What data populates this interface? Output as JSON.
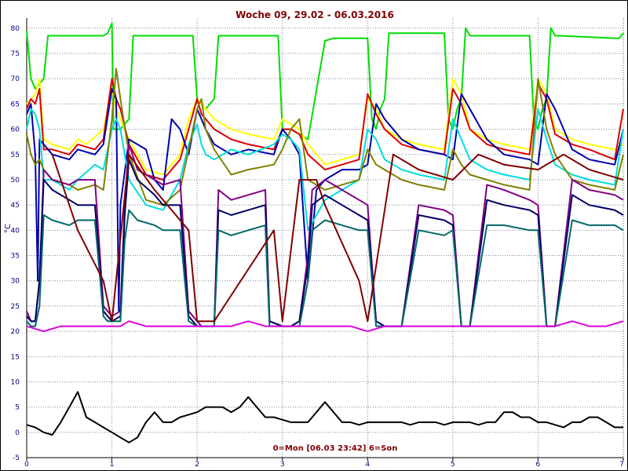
{
  "chart_data": {
    "type": "line",
    "title": "Woche 09, 29.02 - 06.03.2016",
    "ylabel": "°C",
    "xlabel": "0=Mon [06.03 23:42] 6=Son",
    "xlim": [
      0,
      7
    ],
    "ylim": [
      -5,
      82
    ],
    "xticks": [
      "0",
      "1",
      "2",
      "3",
      "4",
      "5",
      "6",
      "7"
    ],
    "yticks": [
      "-5",
      "0",
      "5",
      "10",
      "15",
      "20",
      "25",
      "30",
      "35",
      "40",
      "45",
      "50",
      "55",
      "60",
      "65",
      "70",
      "75",
      "80"
    ],
    "grid": true,
    "series": [
      {
        "color": "#00dd00",
        "x": [
          0,
          0.05,
          0.1,
          0.2,
          0.25,
          0.9,
          0.95,
          1.0,
          1.02,
          1.1,
          1.2,
          1.25,
          1.95,
          2.0,
          2.1,
          2.2,
          2.25,
          2.95,
          3.0,
          3.1,
          3.2,
          3.3,
          3.5,
          3.6,
          3.65,
          4.0,
          4.05,
          4.1,
          4.15,
          4.2,
          4.25,
          4.9,
          4.95,
          5.0,
          5.05,
          5.1,
          5.15,
          5.2,
          5.25,
          5.9,
          5.95,
          6.0,
          6.05,
          6.1,
          6.15,
          6.2,
          6.25,
          6.9,
          6.95,
          7.0
        ],
        "y": [
          79.5,
          70,
          68,
          70,
          78.5,
          78.5,
          79,
          81,
          60,
          60,
          62,
          78.5,
          78.5,
          66,
          64,
          66,
          78.5,
          78.5,
          60,
          60,
          59,
          58,
          77.5,
          78,
          78,
          78,
          62,
          60,
          64,
          66,
          79,
          79,
          62,
          60,
          64,
          66,
          80,
          78.5,
          78.5,
          78.5,
          62,
          60,
          64,
          66,
          80,
          78.5,
          78.5,
          78,
          78,
          79
        ]
      },
      {
        "color": "#ffff00",
        "x": [
          0,
          0.05,
          0.1,
          0.15,
          0.2,
          0.3,
          0.5,
          0.6,
          0.7,
          0.9,
          1.0,
          1.05,
          1.1,
          1.2,
          1.4,
          1.6,
          1.8,
          1.9,
          2.0,
          2.1,
          2.2,
          2.4,
          2.6,
          2.9,
          3.0,
          3.1,
          3.2,
          3.3,
          3.5,
          3.7,
          3.9,
          4.0,
          4.1,
          4.2,
          4.4,
          4.6,
          4.9,
          5.0,
          5.1,
          5.2,
          5.4,
          5.6,
          5.9,
          6.0,
          6.1,
          6.2,
          6.4,
          6.6,
          6.9,
          7.0
        ],
        "y": [
          65,
          66,
          67,
          70,
          58,
          57,
          56,
          58,
          57,
          60,
          68,
          64,
          62,
          58,
          52,
          51,
          55,
          62,
          66,
          64,
          62,
          60,
          59,
          58,
          62,
          61,
          60,
          57,
          53,
          54,
          55,
          66,
          64,
          60,
          58,
          57,
          56,
          70,
          67,
          60,
          58,
          57,
          56,
          70,
          67,
          60,
          58,
          57,
          56,
          57
        ]
      },
      {
        "color": "#dd0000",
        "x": [
          0,
          0.05,
          0.1,
          0.15,
          0.2,
          0.3,
          0.5,
          0.6,
          0.8,
          0.9,
          1.0,
          1.05,
          1.1,
          1.2,
          1.4,
          1.6,
          1.8,
          1.9,
          2.0,
          2.05,
          2.1,
          2.2,
          2.4,
          2.6,
          2.9,
          3.0,
          3.1,
          3.2,
          3.3,
          3.5,
          3.7,
          3.9,
          4.0,
          4.1,
          4.2,
          4.4,
          4.6,
          4.9,
          5.0,
          5.1,
          5.2,
          5.4,
          5.6,
          5.9,
          6.0,
          6.1,
          6.2,
          6.4,
          6.6,
          6.9,
          7.0
        ],
        "y": [
          64,
          66,
          65,
          68,
          56,
          56,
          55,
          57,
          56,
          58,
          70,
          66,
          64,
          57,
          51,
          50,
          54,
          60,
          66,
          63,
          62,
          60,
          58,
          57,
          56,
          60,
          60,
          59,
          55,
          52,
          53,
          54,
          67,
          63,
          60,
          57,
          56,
          55,
          68,
          65,
          60,
          57,
          56,
          55,
          69,
          66,
          59,
          57,
          56,
          54,
          64
        ]
      },
      {
        "color": "#0000aa",
        "x": [
          0,
          0.05,
          0.1,
          0.13,
          0.15,
          0.2,
          0.3,
          0.5,
          0.6,
          0.8,
          0.9,
          1.0,
          1.05,
          1.08,
          1.1,
          1.2,
          1.4,
          1.5,
          1.6,
          1.7,
          1.8,
          1.9,
          2.0,
          2.05,
          2.1,
          2.2,
          2.4,
          2.6,
          2.9,
          3.0,
          3.1,
          3.2,
          3.3,
          3.4,
          3.5,
          3.7,
          3.9,
          4.0,
          4.1,
          4.2,
          4.4,
          4.6,
          4.9,
          5.0,
          5.1,
          5.2,
          5.4,
          5.6,
          5.9,
          6.0,
          6.1,
          6.2,
          6.4,
          6.6,
          6.9,
          7.0
        ],
        "y": [
          63,
          65,
          55,
          30,
          58,
          57,
          55,
          54,
          56,
          55,
          57,
          68,
          66,
          24,
          45,
          58,
          56,
          50,
          48,
          62,
          60,
          55,
          64,
          62,
          60,
          57,
          55,
          56,
          55,
          60,
          58,
          55,
          30,
          48,
          50,
          52,
          52,
          53,
          65,
          62,
          58,
          56,
          55,
          54,
          67,
          64,
          58,
          55,
          54,
          53,
          67,
          64,
          56,
          54,
          53,
          60
        ]
      },
      {
        "color": "#00dddd",
        "x": [
          0,
          0.05,
          0.1,
          0.15,
          0.2,
          0.3,
          0.5,
          0.6,
          0.8,
          0.9,
          1.0,
          1.05,
          1.1,
          1.2,
          1.4,
          1.6,
          1.8,
          1.9,
          2.0,
          2.05,
          2.1,
          2.2,
          2.4,
          2.6,
          2.9,
          3.0,
          3.1,
          3.2,
          3.3,
          3.5,
          3.7,
          3.9,
          4.0,
          4.1,
          4.2,
          4.4,
          4.6,
          4.9,
          5.0,
          5.1,
          5.2,
          5.4,
          5.6,
          5.9,
          6.0,
          6.1,
          6.2,
          6.4,
          6.6,
          6.9,
          7.0
        ],
        "y": [
          60,
          64,
          63,
          60,
          50,
          50,
          48,
          50,
          53,
          52,
          60,
          62,
          60,
          50,
          45,
          44,
          50,
          57,
          61,
          57,
          55,
          54,
          56,
          55,
          57,
          59,
          58,
          56,
          40,
          46,
          48,
          50,
          60,
          58,
          54,
          52,
          51,
          50,
          62,
          58,
          54,
          52,
          51,
          50,
          64,
          58,
          53,
          51,
          50,
          49,
          60
        ]
      },
      {
        "color": "#808000",
        "x": [
          0,
          0.05,
          0.1,
          0.15,
          0.2,
          0.3,
          0.5,
          0.6,
          0.8,
          0.9,
          1.0,
          1.05,
          1.1,
          1.2,
          1.4,
          1.6,
          1.8,
          1.9,
          2.0,
          2.05,
          2.1,
          2.2,
          2.4,
          2.6,
          2.9,
          3.0,
          3.1,
          3.2,
          3.3,
          3.5,
          3.7,
          3.9,
          4.0,
          4.1,
          4.2,
          4.4,
          4.6,
          4.9,
          5.0,
          5.1,
          5.2,
          5.4,
          5.6,
          5.9,
          6.0,
          6.1,
          6.2,
          6.4,
          6.6,
          6.9,
          7.0
        ],
        "y": [
          59,
          55,
          53,
          54,
          52,
          50,
          49,
          48,
          49,
          48,
          62,
          72,
          66,
          55,
          46,
          45,
          48,
          56,
          64,
          66,
          60,
          56,
          51,
          52,
          53,
          56,
          60,
          62,
          50,
          48,
          49,
          50,
          56,
          53,
          52,
          50,
          49,
          48,
          56,
          53,
          51,
          50,
          49,
          48,
          70,
          60,
          55,
          50,
          49,
          48,
          55
        ]
      },
      {
        "color": "#800080",
        "x": [
          0,
          0.05,
          0.1,
          0.15,
          0.2,
          0.3,
          0.5,
          0.6,
          0.8,
          0.9,
          0.95,
          1.0,
          1.1,
          1.15,
          1.2,
          1.3,
          1.5,
          1.6,
          1.8,
          1.9,
          2.0,
          2.05,
          2.2,
          2.25,
          2.4,
          2.6,
          2.8,
          2.85,
          3.0,
          3.1,
          3.2,
          3.3,
          3.35,
          3.5,
          3.7,
          3.9,
          4.0,
          4.1,
          4.2,
          4.4,
          4.6,
          4.9,
          5.0,
          5.1,
          5.2,
          5.4,
          5.6,
          5.9,
          6.0,
          6.1,
          6.2,
          6.4,
          6.6,
          6.9,
          7.0
        ],
        "y": [
          24,
          22,
          22,
          30,
          52,
          50,
          49,
          50,
          50,
          25,
          24,
          23,
          24,
          45,
          57,
          52,
          50,
          49,
          50,
          24,
          22,
          21,
          21,
          48,
          46,
          47,
          48,
          22,
          21,
          21,
          22,
          35,
          48,
          50,
          48,
          46,
          45,
          22,
          21,
          21,
          45,
          44,
          43,
          21,
          21,
          49,
          48,
          46,
          45,
          21,
          21,
          50,
          48,
          47,
          46
        ]
      },
      {
        "color": "#000066",
        "x": [
          0,
          0.05,
          0.1,
          0.15,
          0.2,
          0.3,
          0.5,
          0.6,
          0.8,
          0.9,
          0.95,
          1.0,
          1.1,
          1.15,
          1.2,
          1.3,
          1.5,
          1.6,
          1.8,
          1.9,
          2.0,
          2.05,
          2.2,
          2.25,
          2.4,
          2.6,
          2.8,
          2.85,
          3.0,
          3.1,
          3.2,
          3.3,
          3.35,
          3.5,
          3.7,
          3.9,
          4.0,
          4.1,
          4.2,
          4.4,
          4.6,
          4.9,
          5.0,
          5.1,
          5.2,
          5.4,
          5.6,
          5.9,
          6.0,
          6.1,
          6.2,
          6.4,
          6.6,
          6.9,
          7.0
        ],
        "y": [
          23,
          22,
          22,
          30,
          50,
          48,
          46,
          45,
          45,
          24,
          23,
          22,
          23,
          43,
          54,
          50,
          47,
          45,
          45,
          23,
          21,
          21,
          21,
          44,
          43,
          44,
          45,
          22,
          21,
          21,
          22,
          33,
          45,
          47,
          45,
          43,
          42,
          22,
          21,
          21,
          43,
          42,
          41,
          21,
          21,
          46,
          45,
          44,
          43,
          21,
          21,
          47,
          45,
          44,
          43
        ]
      },
      {
        "color": "#006666",
        "x": [
          0,
          0.05,
          0.1,
          0.15,
          0.2,
          0.3,
          0.5,
          0.6,
          0.8,
          0.9,
          0.95,
          1.0,
          1.1,
          1.15,
          1.2,
          1.3,
          1.5,
          1.6,
          1.8,
          1.9,
          2.0,
          2.05,
          2.2,
          2.25,
          2.4,
          2.6,
          2.8,
          2.85,
          3.0,
          3.1,
          3.2,
          3.3,
          3.35,
          3.5,
          3.7,
          3.9,
          4.0,
          4.1,
          4.2,
          4.4,
          4.6,
          4.9,
          5.0,
          5.1,
          5.2,
          5.4,
          5.6,
          5.9,
          6.0,
          6.1,
          6.2,
          6.4,
          6.6,
          6.9,
          7.0
        ],
        "y": [
          22,
          21,
          21,
          25,
          43,
          42,
          41,
          42,
          42,
          23,
          22,
          22,
          22,
          38,
          44,
          42,
          41,
          40,
          40,
          22,
          21,
          21,
          21,
          40,
          39,
          40,
          41,
          21,
          21,
          21,
          21,
          30,
          40,
          42,
          41,
          40,
          40,
          21,
          21,
          21,
          40,
          39,
          40,
          21,
          21,
          41,
          41,
          40,
          40,
          21,
          21,
          42,
          41,
          41,
          40
        ]
      },
      {
        "color": "#800000",
        "x": [
          0.3,
          0.6,
          0.9,
          1.0,
          1.2,
          1.5,
          1.9,
          2.0,
          2.2,
          2.9,
          3.0,
          3.2,
          3.4,
          3.5,
          3.9,
          4.0,
          4.3,
          4.6,
          5.0,
          5.3,
          5.6,
          6.0,
          6.3,
          6.6,
          7.0
        ],
        "y": [
          55,
          40,
          30,
          22,
          55,
          48,
          40,
          22,
          22,
          40,
          22,
          50,
          50,
          45,
          30,
          22,
          55,
          52,
          50,
          55,
          53,
          52,
          55,
          52,
          50
        ]
      },
      {
        "color": "#dd00dd",
        "x": [
          0,
          0.2,
          0.4,
          0.6,
          0.8,
          1.0,
          1.1,
          1.2,
          1.4,
          1.6,
          1.8,
          2.0,
          2.2,
          2.4,
          2.6,
          2.8,
          3.0,
          3.2,
          3.4,
          3.6,
          3.8,
          4.0,
          4.2,
          4.4,
          4.6,
          4.8,
          5.0,
          5.2,
          5.4,
          5.6,
          5.8,
          6.0,
          6.2,
          6.4,
          6.6,
          6.8,
          7.0
        ],
        "y": [
          21,
          20,
          21,
          21,
          21,
          21,
          21,
          22,
          21,
          21,
          21,
          21,
          21,
          21,
          22,
          21,
          21,
          21,
          21,
          21,
          21,
          20,
          21,
          21,
          21,
          21,
          21,
          21,
          21,
          21,
          21,
          21,
          21,
          22,
          21,
          21,
          22
        ]
      },
      {
        "color": "#000000",
        "x": [
          0,
          0.1,
          0.2,
          0.3,
          0.4,
          0.5,
          0.6,
          0.7,
          0.8,
          0.9,
          1.0,
          1.1,
          1.2,
          1.3,
          1.4,
          1.5,
          1.6,
          1.7,
          1.8,
          1.9,
          2.0,
          2.1,
          2.2,
          2.3,
          2.4,
          2.5,
          2.6,
          2.7,
          2.8,
          2.9,
          3.0,
          3.1,
          3.2,
          3.3,
          3.4,
          3.5,
          3.6,
          3.7,
          3.8,
          3.9,
          4.0,
          4.1,
          4.2,
          4.3,
          4.4,
          4.5,
          4.6,
          4.7,
          4.8,
          4.9,
          5.0,
          5.1,
          5.2,
          5.3,
          5.4,
          5.5,
          5.6,
          5.7,
          5.8,
          5.9,
          6.0,
          6.1,
          6.2,
          6.3,
          6.4,
          6.5,
          6.6,
          6.7,
          6.8,
          6.9,
          7.0
        ],
        "y": [
          1.5,
          1,
          0,
          -0.5,
          2,
          5,
          8,
          3,
          2,
          1,
          0,
          -1,
          -2,
          -1,
          2,
          4,
          2,
          2,
          3,
          3.5,
          4,
          5,
          5,
          5,
          4,
          5,
          7,
          5,
          3,
          3,
          2.5,
          2,
          2,
          2,
          4,
          6,
          4,
          2,
          2,
          1.5,
          2,
          2,
          2,
          2,
          2,
          1.5,
          2,
          2,
          2,
          1.5,
          2,
          2,
          2,
          1.5,
          2,
          2,
          4,
          4,
          3,
          3,
          2,
          2,
          1.5,
          1,
          2,
          2,
          3,
          3,
          2,
          1,
          1
        ]
      }
    ]
  }
}
